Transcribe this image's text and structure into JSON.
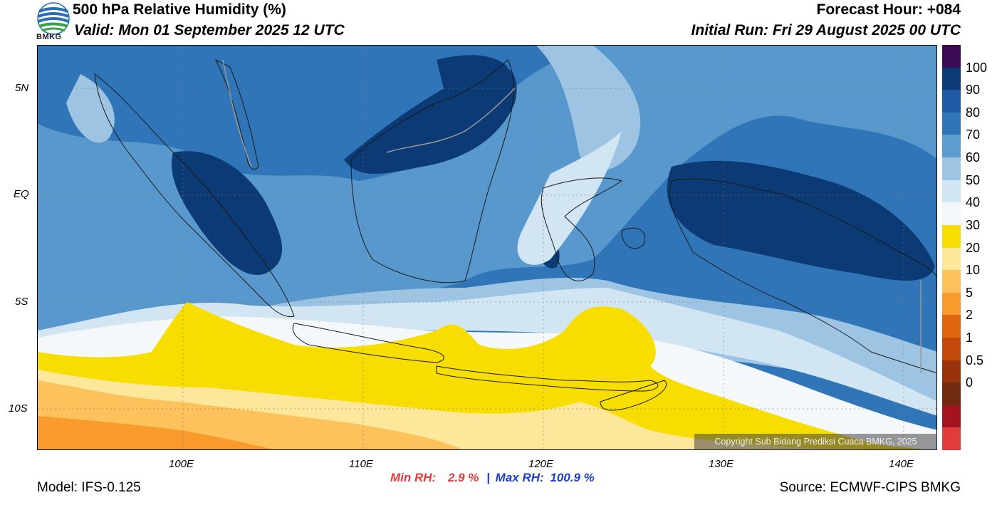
{
  "header": {
    "logo_text": "BMKG",
    "title": "500 hPa Relative Humidity (%)",
    "valid": "Valid: Mon 01 September 2025 12 UTC",
    "forecast_hour": "Forecast Hour: +084",
    "initial_run": "Initial Run: Fri 29 August 2025 00 UTC"
  },
  "axes": {
    "lat_labels": [
      "5N",
      "EQ",
      "5S",
      "10S"
    ],
    "lon_labels": [
      "100E",
      "110E",
      "120E",
      "130E",
      "140E"
    ]
  },
  "map": {
    "extent": {
      "lon_min": 92,
      "lon_max": 142,
      "lat_min": -12,
      "lat_max": 7
    },
    "copyright": "Copyright Sub Bidang Prediksi Cuaca BMKG, 2025",
    "colors": {
      "ocean_base": "#2f75b8",
      "rh90": "#0b3a75",
      "rh80": "#2f75b8",
      "rh70": "#5d9ccf",
      "rh60": "#9dc5e3",
      "rh50": "#d2e5f2",
      "rh40": "#f5f8fa",
      "rh30": "#f7de00",
      "rh20": "#fde79a",
      "rh10": "#fec25c",
      "rh5": "#f89a2c",
      "coast": "#1a1a1a",
      "border": "#9a9a9a"
    }
  },
  "colorbar": {
    "labels": [
      "100",
      "90",
      "80",
      "70",
      "60",
      "50",
      "40",
      "30",
      "20",
      "10",
      "5",
      "2",
      "1",
      "0.5",
      "0"
    ],
    "colors": [
      "#3b0a55",
      "#0b3a75",
      "#1f5ba4",
      "#2f75b8",
      "#5d9ccf",
      "#9dc5e3",
      "#d2e5f2",
      "#f5f8fa",
      "#f7de00",
      "#fde79a",
      "#fec25c",
      "#f89a2c",
      "#e0650f",
      "#c44a0c",
      "#9a330c",
      "#702a0f",
      "#a3141e",
      "#e03c3c"
    ]
  },
  "stats": {
    "min_label": "Min RH:",
    "min_value": "2.9 %",
    "separator": "|",
    "max_label": "Max RH:",
    "max_value": "100.9 %"
  },
  "footer": {
    "model": "Model: IFS-0.125",
    "source": "Source: ECMWF-CIPS BMKG"
  }
}
